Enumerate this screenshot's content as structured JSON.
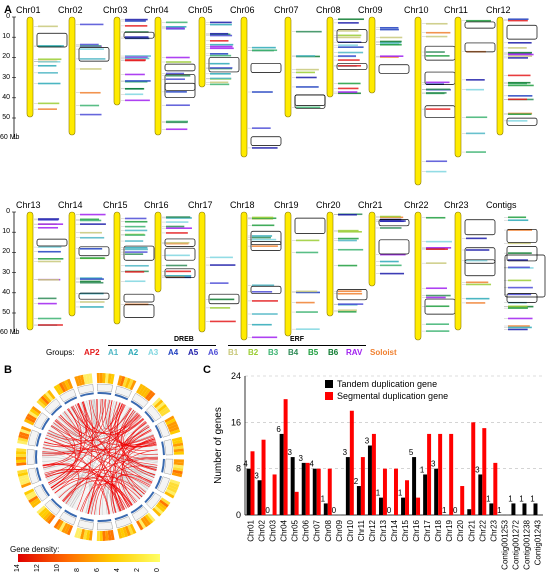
{
  "panel_a": {
    "letter": "A",
    "top_chromosomes": [
      "Chr01",
      "Chr02",
      "Chr03",
      "Chr04",
      "Chr05",
      "Chr06",
      "Chr07",
      "Chr08",
      "Chr09",
      "Chr10",
      "Chr11",
      "Chr12"
    ],
    "bottom_chromosomes": [
      "Chr13",
      "Chr14",
      "Chr15",
      "Chr16",
      "Chr17",
      "Chr18",
      "Chr19",
      "Chr20",
      "Chr21",
      "Chr22",
      "Chr23",
      "Contigs"
    ],
    "axis_ticks_top": [
      "0",
      "10",
      "20",
      "30",
      "40",
      "50",
      "60 Mb"
    ],
    "axis_ticks_bottom": [
      "0",
      "10",
      "20",
      "30",
      "40",
      "50",
      "60 Mb"
    ],
    "groups_label": "Groups:",
    "class_dreb": "DREB",
    "class_erf": "ERF",
    "groups": [
      {
        "name": "AP2",
        "color": "#e41a1c"
      },
      {
        "name": "A1",
        "color": "#4db6c4"
      },
      {
        "name": "A2",
        "color": "#2ca9b7"
      },
      {
        "name": "A3",
        "color": "#7fd6e0"
      },
      {
        "name": "A4",
        "color": "#1f3fbf"
      },
      {
        "name": "A5",
        "color": "#1a1aa8"
      },
      {
        "name": "A6",
        "color": "#4b4bd6"
      },
      {
        "name": "B1",
        "color": "#c8c87a"
      },
      {
        "name": "B2",
        "color": "#9acd32"
      },
      {
        "name": "B3",
        "color": "#3cb371"
      },
      {
        "name": "B4",
        "color": "#2e8b57"
      },
      {
        "name": "B5",
        "color": "#1e9e3e"
      },
      {
        "name": "B6",
        "color": "#0b7a2e"
      },
      {
        "name": "RAV",
        "color": "#a020f0"
      },
      {
        "name": "Soloist",
        "color": "#f08030"
      }
    ]
  },
  "panel_b": {
    "letter": "B",
    "density_label": "Gene density:",
    "density_ticks": [
      "14",
      "12",
      "10",
      "8",
      "6",
      "4",
      "2",
      "0"
    ]
  },
  "panel_c": {
    "letter": "C"
  },
  "chart_data": {
    "type": "bar",
    "ylabel": "Number of genes",
    "ylim": [
      0,
      24
    ],
    "yticks": [
      0,
      8,
      16,
      24
    ],
    "grid": "horizontal dashed",
    "legend_position": "top-right",
    "categories": [
      "Chr01",
      "Chr02",
      "Chr03",
      "Chr04",
      "Chr05",
      "Chr06",
      "Chr07",
      "Chr08",
      "Chr09",
      "Chr10",
      "Chr11",
      "Chr12",
      "Chr13",
      "Chr14",
      "Chr15",
      "Chr16",
      "Chr17",
      "Chr18",
      "Chr19",
      "Chr20",
      "Chr21",
      "Chr22",
      "Chr23",
      "Contig001253",
      "Contig001272",
      "Contig001238",
      "Contig01243"
    ],
    "series": [
      {
        "name": "Tandem duplication gene",
        "color": "#000000",
        "values": [
          8,
          6,
          0,
          14,
          10,
          9,
          8,
          2,
          0,
          10,
          5,
          12,
          3,
          0,
          3,
          10,
          7,
          8,
          0,
          0,
          1,
          7,
          2,
          0,
          2,
          2,
          2
        ],
        "labels": [
          "4",
          "3",
          "0",
          "6",
          "3",
          "3",
          "4",
          "1",
          "0",
          "3",
          "2",
          "3",
          "1",
          "0",
          "1",
          "5",
          "1",
          "3",
          "1",
          "0",
          "",
          "3",
          "1",
          "1",
          "1",
          "1",
          "1"
        ]
      },
      {
        "name": "Segmental duplication gene",
        "color": "#ff0000",
        "values": [
          11,
          13,
          7,
          20,
          4,
          9,
          8,
          8,
          0,
          18,
          10,
          14,
          8,
          8,
          6,
          3,
          14,
          14,
          14,
          5,
          16,
          15,
          9,
          0,
          0,
          0,
          0
        ]
      }
    ]
  }
}
